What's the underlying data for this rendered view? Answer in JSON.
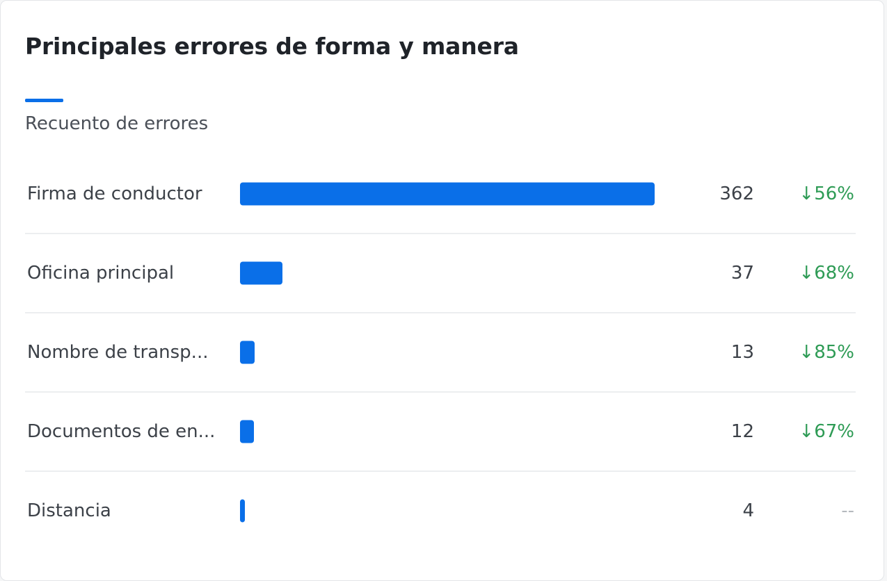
{
  "card": {
    "title": "Principales errores de forma y manera",
    "tab_label": "Recuento de errores"
  },
  "colors": {
    "accent": "#0a6fe8",
    "positive_change": "#2e9b55",
    "neutral_change": "#b5b9be"
  },
  "max_value": 362,
  "rows": [
    {
      "label": "Firma de conductor",
      "value": "362",
      "change": "↓56%"
    },
    {
      "label": "Oficina principal",
      "value": "37",
      "change": "↓68%"
    },
    {
      "label": "Nombre de transp...",
      "value": "13",
      "change": "↓85%"
    },
    {
      "label": "Documentos de en...",
      "value": "12",
      "change": "↓67%"
    },
    {
      "label": "Distancia",
      "value": "4",
      "change": "--"
    }
  ]
}
